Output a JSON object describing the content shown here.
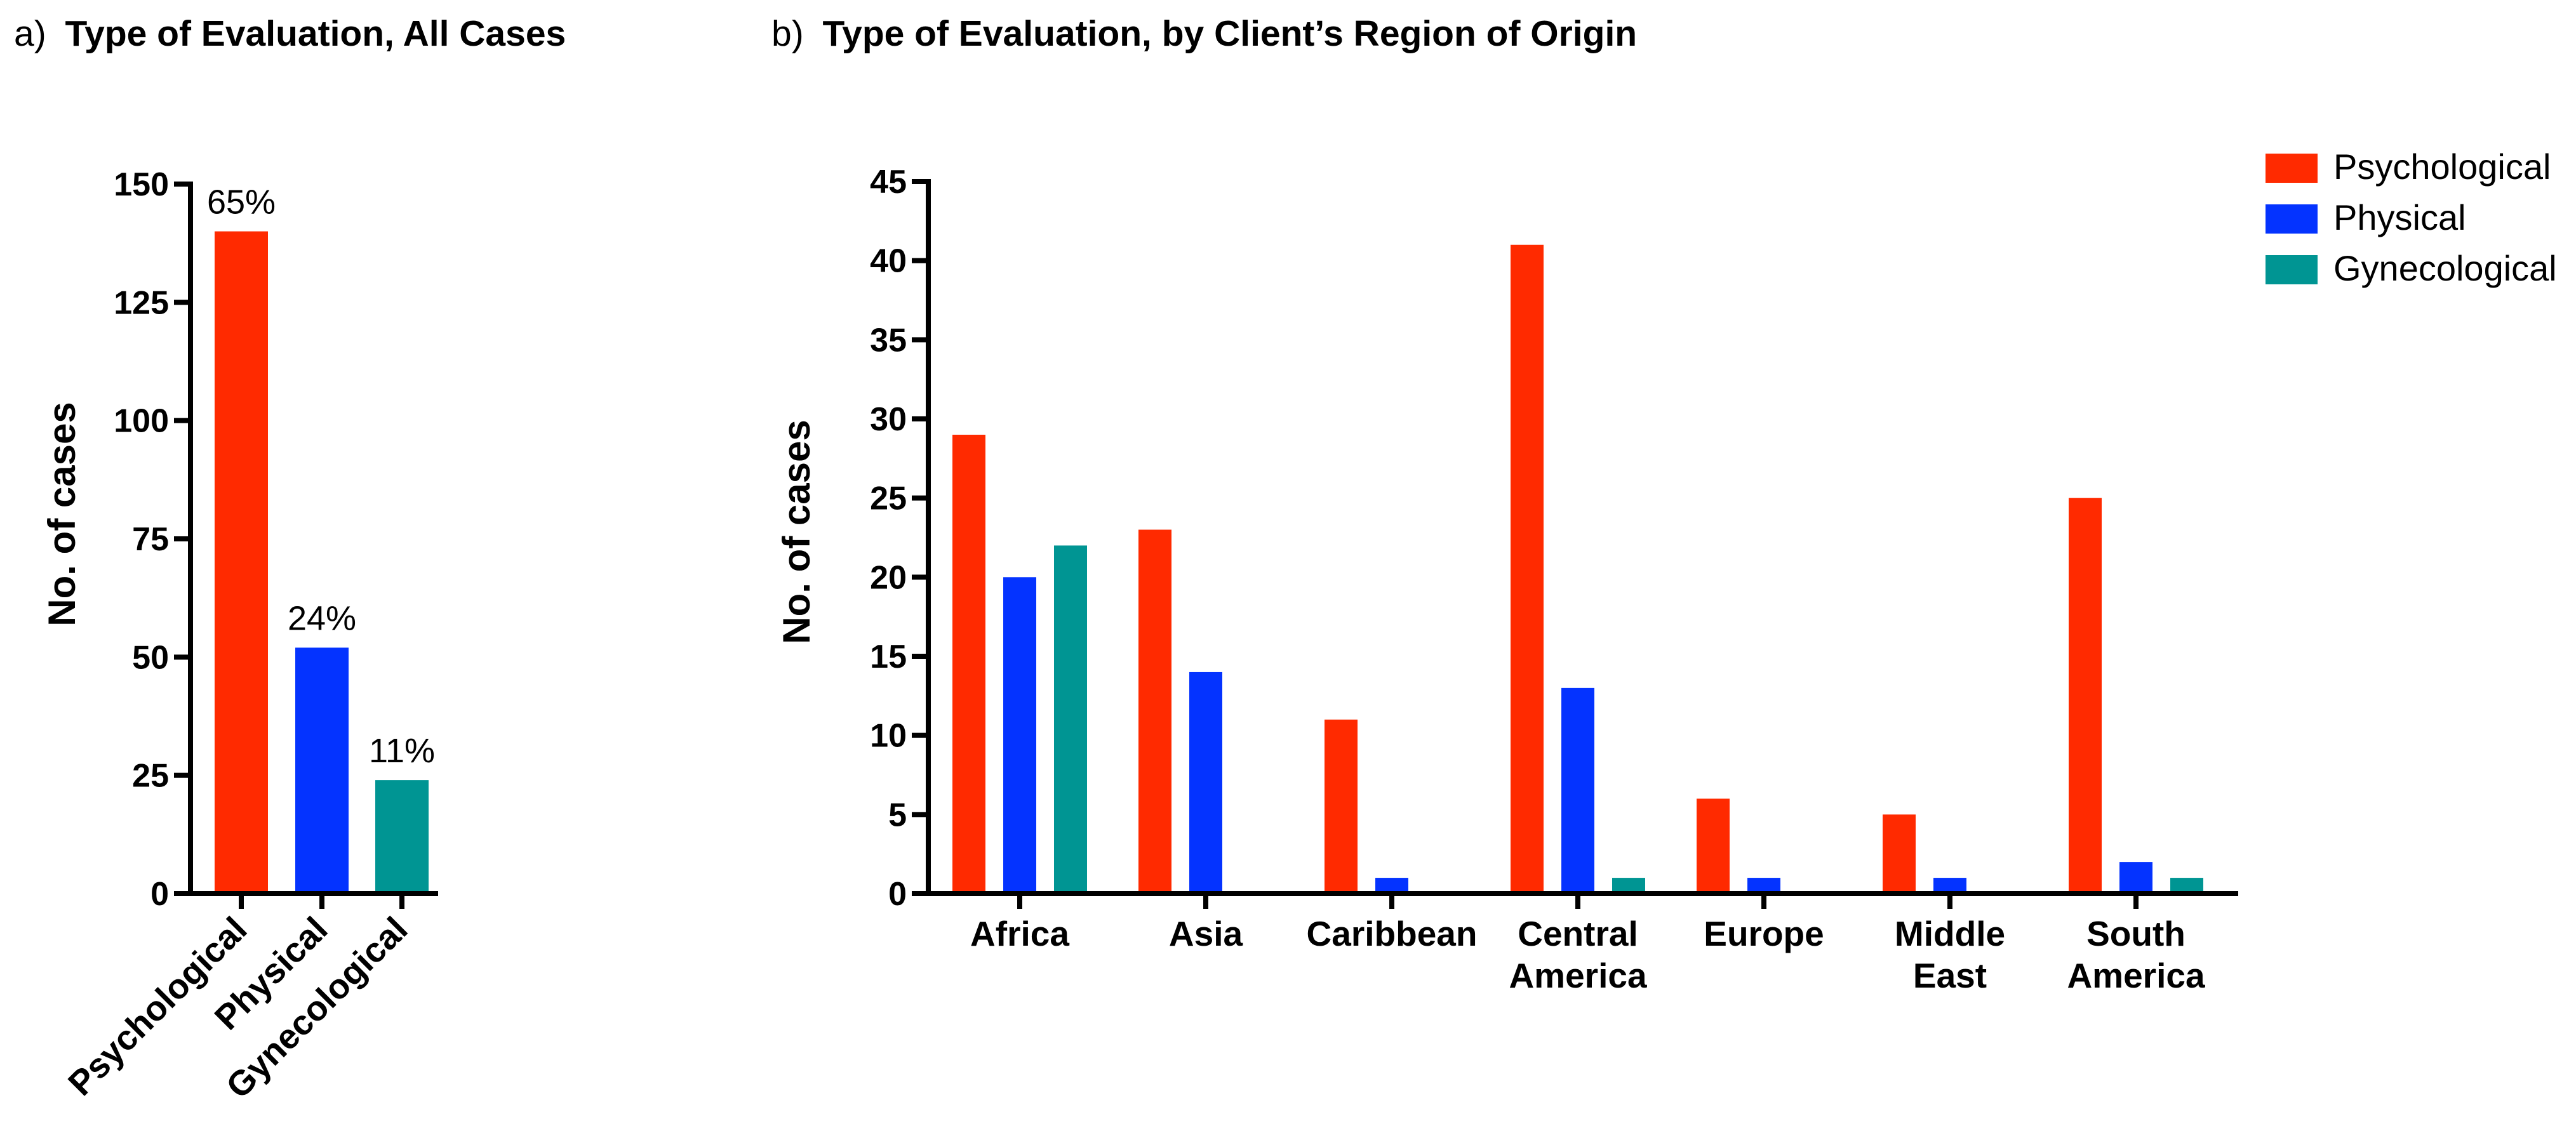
{
  "chart_data": [
    {
      "panel": "a)",
      "type": "bar",
      "title": "Type of Evaluation, All Cases",
      "ylabel": "No. of cases",
      "ylim": [
        0,
        150
      ],
      "yticks": [
        0,
        25,
        50,
        75,
        100,
        125,
        150
      ],
      "categories": [
        "Psychological",
        "Physical",
        "Gynecological"
      ],
      "values": [
        140,
        52,
        24
      ],
      "data_labels": [
        "65%",
        "24%",
        "11%"
      ],
      "colors": [
        "#ff2a00",
        "#0433ff",
        "#009593"
      ]
    },
    {
      "panel": "b)",
      "type": "bar",
      "title": "Type of Evaluation, by Client’s Region of Origin",
      "ylabel": "No. of cases",
      "ylim": [
        0,
        45
      ],
      "yticks": [
        0,
        5,
        10,
        15,
        20,
        25,
        30,
        35,
        40,
        45
      ],
      "categories": [
        [
          "Africa"
        ],
        [
          "Asia"
        ],
        [
          "Caribbean"
        ],
        [
          "Central",
          "America"
        ],
        [
          "Europe"
        ],
        [
          "Middle",
          "East"
        ],
        [
          "South",
          "America"
        ]
      ],
      "series": [
        {
          "name": "Psychological",
          "color": "#ff2a00",
          "values": [
            29,
            23,
            11,
            41,
            6,
            5,
            25
          ]
        },
        {
          "name": "Physical",
          "color": "#0433ff",
          "values": [
            20,
            14,
            1,
            13,
            1,
            1,
            2
          ]
        },
        {
          "name": "Gynecological",
          "color": "#009593",
          "values": [
            22,
            0,
            0,
            1,
            0,
            0,
            1
          ]
        }
      ],
      "legend_position": "top-right"
    }
  ]
}
